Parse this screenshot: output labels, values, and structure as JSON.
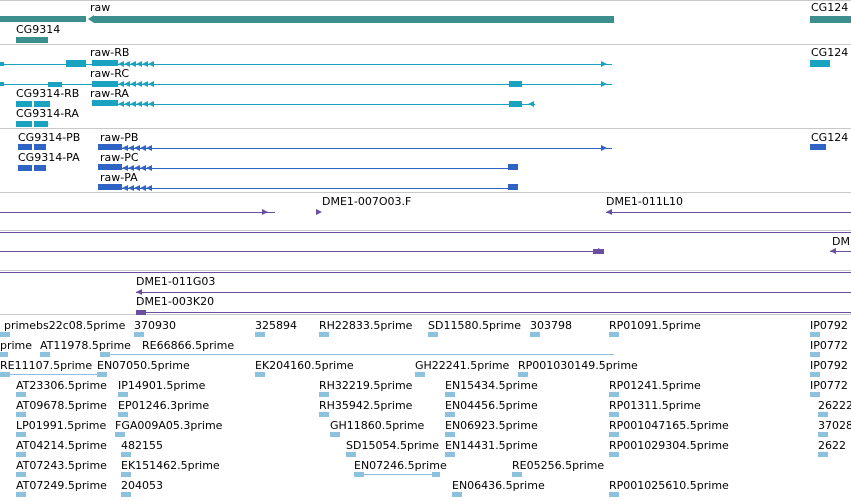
{
  "colors": {
    "gene": "#3d8f8f",
    "transcript": "#19a3c0",
    "cds": "#2f63c4",
    "clone": "#6a4ea0",
    "est": "#8ec1de",
    "separator": "#c8c8c8"
  },
  "gene_track": {
    "labels": [
      "raw",
      "CG9314",
      "CG124"
    ]
  },
  "transcript_track": {
    "labels": [
      "raw-RB",
      "raw-RC",
      "CG9314-RB",
      "raw-RA",
      "CG9314-RA",
      "CG124"
    ]
  },
  "cds_track": {
    "labels": [
      "CG9314-PB",
      "raw-PB",
      "CG9314-PA",
      "raw-PC",
      "raw-PA",
      "CG124"
    ]
  },
  "clone_track": {
    "labels": [
      "DME1-007O03.F",
      "DME1-011L10",
      "DME",
      "DME1-011G03",
      "DME1-003K20"
    ]
  },
  "est_track": {
    "labels": [
      "primebs22c08.5prime",
      "370930",
      "325894",
      "RH22833.5prime",
      "SD11580.5prime",
      "303798",
      "RP01091.5prime",
      "IP0792",
      "prime",
      "AT11978.5prime",
      "RE66866.5prime",
      "IP0772",
      "RE11107.5prime",
      "EN07050.5prime",
      "EK204160.5prime",
      "GH22241.5prime",
      "RP001030149.5prime",
      "IP0792",
      "AT23306.5prime",
      "IP14901.5prime",
      "RH32219.5prime",
      "EN15434.5prime",
      "RP01241.5prime",
      "IP0772",
      "AT09678.5prime",
      "EP01246.3prime",
      "RH35942.5prime",
      "EN04456.5prime",
      "RP01311.5prime",
      "26222",
      "LP01991.5prime",
      "FGA009A05.3prime",
      "GH11860.5prime",
      "EN06923.5prime",
      "RP001047165.5prime",
      "37028",
      "AT04214.5prime",
      "482155",
      "SD15054.5prime",
      "EN14431.5prime",
      "RP001029304.5prime",
      "2622",
      "AT07243.5prime",
      "EK151462.5prime",
      "EN07246.5prime",
      "RE05256.5prime",
      "AT07249.5prime",
      "204053",
      "EN06436.5prime",
      "RP001025610.5prime"
    ]
  }
}
